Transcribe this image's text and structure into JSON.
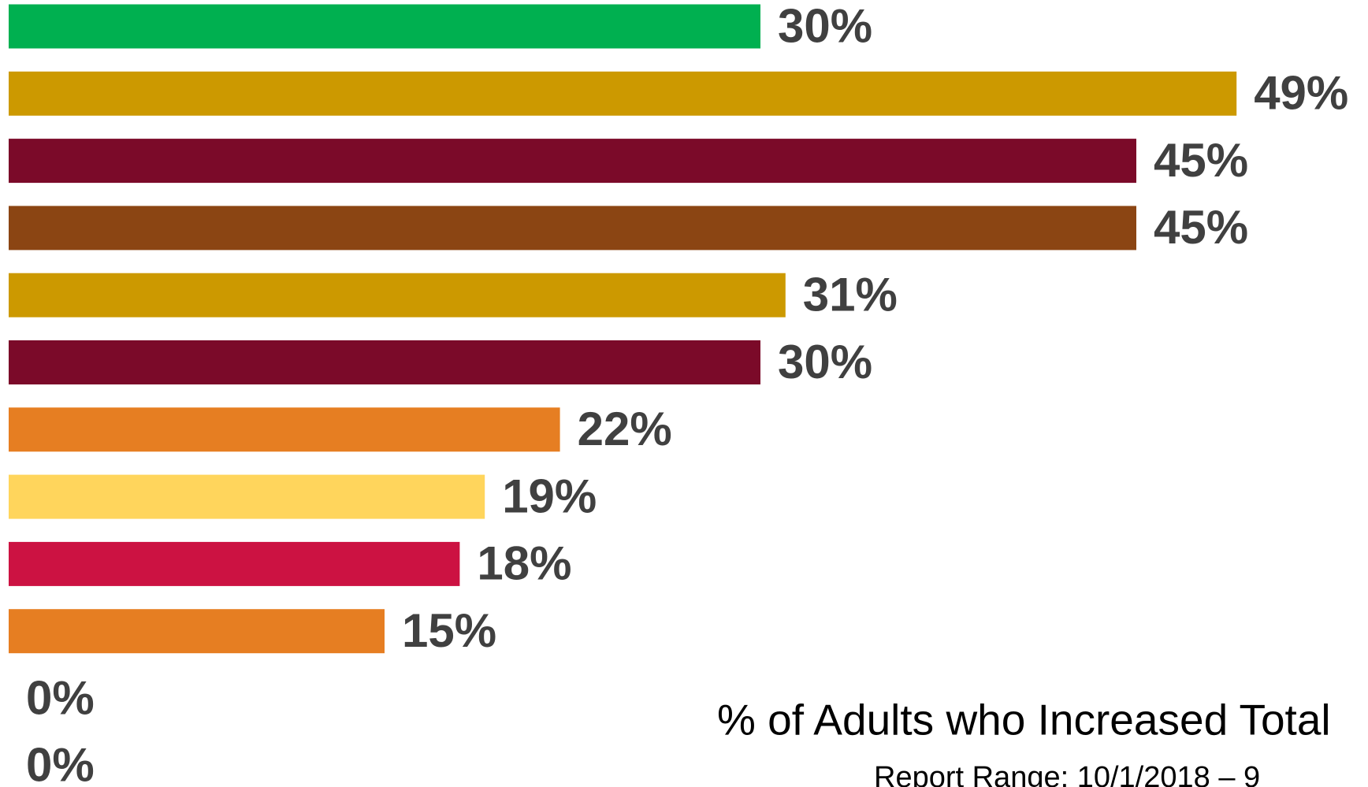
{
  "chart_data": {
    "type": "bar",
    "orientation": "horizontal",
    "title": "% of Adults who Increased Total",
    "subtitle": "Report Range: 10/1/2018 – 9",
    "values": [
      30,
      49,
      45,
      45,
      31,
      30,
      22,
      19,
      18,
      15,
      0,
      0
    ],
    "value_labels": [
      "30%",
      "49%",
      "45%",
      "45%",
      "31%",
      "30%",
      "22%",
      "19%",
      "18%",
      "15%",
      "0%",
      "0%"
    ],
    "colors": [
      "#00b050",
      "#cc9900",
      "#7b0a29",
      "#8b4513",
      "#cc9900",
      "#7b0a29",
      "#e67e22",
      "#ffd55c",
      "#cc1242",
      "#e67e22",
      "#7f7f7f",
      "#7f7f7f"
    ]
  }
}
